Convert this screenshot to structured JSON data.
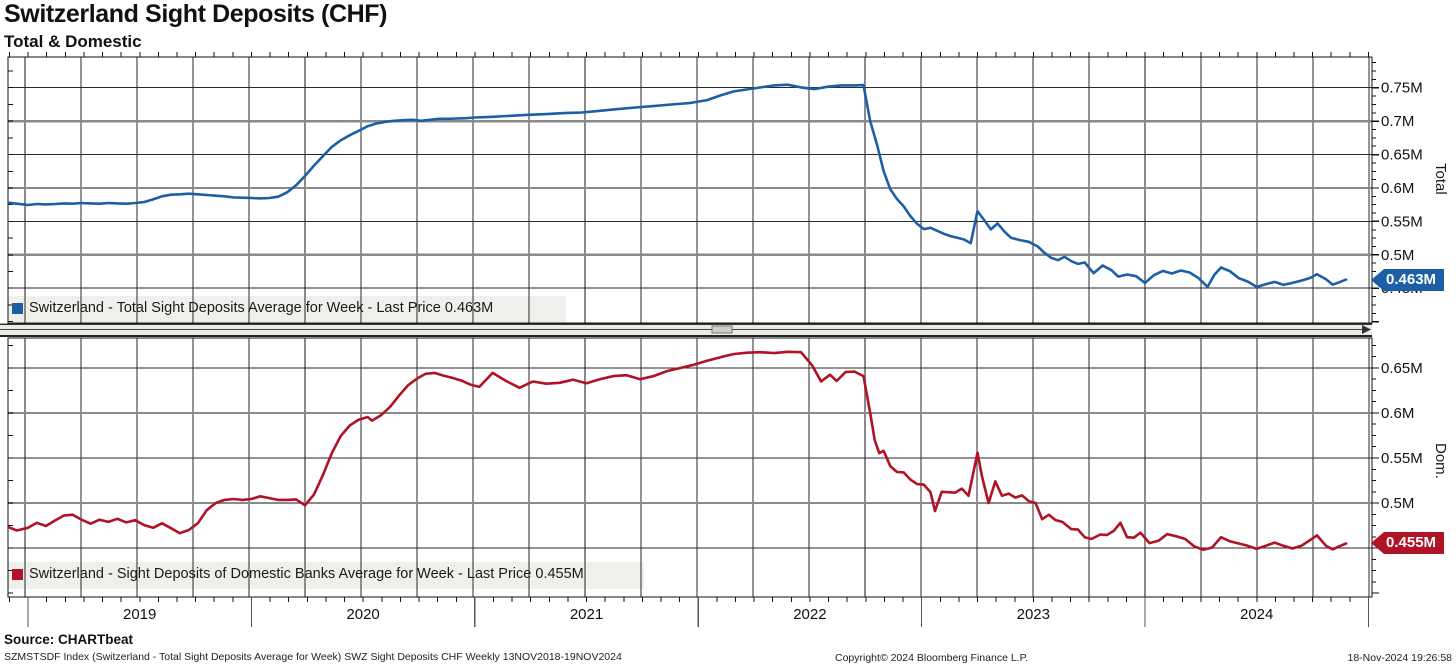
{
  "header": {
    "title": "Switzerland Sight Deposits (CHF)",
    "subtitle": "Total & Domestic"
  },
  "footer": {
    "source": "Source: CHARTbeat",
    "description": "SZMSTSDF Index (Switzerland - Total Sight Deposits Average for Week) SWZ Sight Deposits CHF  Weekly 13NOV2018-19NOV2024",
    "copyright": "Copyright© 2024 Bloomberg Finance L.P.",
    "timestamp": "18-Nov-2024 19:26:58"
  },
  "colors": {
    "total_line": "#1d5fa5",
    "domestic_line": "#b01226",
    "grid_thin": "#2a2a2a",
    "grid_thick": "#8a8a8a",
    "legend_strip": "#f0efeb",
    "axis_text": "#111111"
  },
  "x_axis": {
    "year_labels": [
      "2019",
      "2020",
      "2021",
      "2022",
      "2023",
      "2024"
    ],
    "range_note": "13NOV2018-19NOV2024"
  },
  "chart_data": [
    {
      "type": "line",
      "panel": "top",
      "legend": "Switzerland - Total Sight Deposits Average for Week - Last Price 0.463M",
      "series_name": "Switzerland - Total Sight Deposits Average for Week",
      "last_price": "0.463M",
      "last_price_value": 0.463,
      "color": "#1d5fa5",
      "right_axis_title": "Total",
      "ylim": [
        0.398,
        0.796
      ],
      "yticks": [
        0.75,
        0.7,
        0.65,
        0.6,
        0.55,
        0.5,
        0.45
      ],
      "ytick_labels": [
        "0.75M",
        "0.7M",
        "0.65M",
        "0.6M",
        "0.55M",
        "0.5M",
        "0.45M"
      ],
      "emphasized_gridlines": [
        0.7,
        0.6,
        0.5
      ],
      "x_unit": "decimal_year",
      "xlim": [
        2018.9,
        2025.02
      ],
      "points": [
        [
          2018.91,
          0.578
        ],
        [
          2018.95,
          0.5765
        ],
        [
          2019.0,
          0.5745
        ],
        [
          2019.04,
          0.576
        ],
        [
          2019.08,
          0.5755
        ],
        [
          2019.12,
          0.576
        ],
        [
          2019.16,
          0.577
        ],
        [
          2019.2,
          0.5765
        ],
        [
          2019.24,
          0.5775
        ],
        [
          2019.28,
          0.577
        ],
        [
          2019.32,
          0.5765
        ],
        [
          2019.36,
          0.5775
        ],
        [
          2019.4,
          0.577
        ],
        [
          2019.44,
          0.5765
        ],
        [
          2019.48,
          0.5775
        ],
        [
          2019.52,
          0.579
        ],
        [
          2019.56,
          0.583
        ],
        [
          2019.6,
          0.5875
        ],
        [
          2019.64,
          0.59
        ],
        [
          2019.68,
          0.5905
        ],
        [
          2019.72,
          0.5915
        ],
        [
          2019.76,
          0.5905
        ],
        [
          2019.8,
          0.5895
        ],
        [
          2019.84,
          0.5885
        ],
        [
          2019.88,
          0.5875
        ],
        [
          2019.92,
          0.586
        ],
        [
          2019.96,
          0.5855
        ],
        [
          2020.0,
          0.585
        ],
        [
          2020.04,
          0.5845
        ],
        [
          2020.08,
          0.585
        ],
        [
          2020.12,
          0.587
        ],
        [
          2020.16,
          0.5935
        ],
        [
          2020.2,
          0.604
        ],
        [
          2020.24,
          0.618
        ],
        [
          2020.28,
          0.6335
        ],
        [
          2020.32,
          0.6475
        ],
        [
          2020.36,
          0.6615
        ],
        [
          2020.4,
          0.6715
        ],
        [
          2020.44,
          0.679
        ],
        [
          2020.48,
          0.6855
        ],
        [
          2020.52,
          0.6925
        ],
        [
          2020.56,
          0.6965
        ],
        [
          2020.6,
          0.699
        ],
        [
          2020.64,
          0.7005
        ],
        [
          2020.68,
          0.7015
        ],
        [
          2020.72,
          0.702
        ],
        [
          2020.76,
          0.7005
        ],
        [
          2020.8,
          0.702
        ],
        [
          2020.84,
          0.7035
        ],
        [
          2020.88,
          0.7035
        ],
        [
          2020.92,
          0.704
        ],
        [
          2020.96,
          0.7045
        ],
        [
          2021.0,
          0.7055
        ],
        [
          2021.08,
          0.7065
        ],
        [
          2021.16,
          0.708
        ],
        [
          2021.24,
          0.7095
        ],
        [
          2021.32,
          0.7105
        ],
        [
          2021.4,
          0.712
        ],
        [
          2021.48,
          0.713
        ],
        [
          2021.56,
          0.7155
        ],
        [
          2021.64,
          0.718
        ],
        [
          2021.72,
          0.7205
        ],
        [
          2021.8,
          0.7225
        ],
        [
          2021.88,
          0.725
        ],
        [
          2021.96,
          0.727
        ],
        [
          2022.04,
          0.7315
        ],
        [
          2022.1,
          0.7385
        ],
        [
          2022.16,
          0.7445
        ],
        [
          2022.22,
          0.7475
        ],
        [
          2022.28,
          0.7505
        ],
        [
          2022.34,
          0.7535
        ],
        [
          2022.4,
          0.7545
        ],
        [
          2022.46,
          0.7505
        ],
        [
          2022.52,
          0.748
        ],
        [
          2022.58,
          0.7515
        ],
        [
          2022.64,
          0.7535
        ],
        [
          2022.7,
          0.7535
        ],
        [
          2022.74,
          0.754
        ],
        [
          2022.77,
          0.7
        ],
        [
          2022.8,
          0.6655
        ],
        [
          2022.83,
          0.6255
        ],
        [
          2022.86,
          0.598
        ],
        [
          2022.89,
          0.5835
        ],
        [
          2022.92,
          0.5725
        ],
        [
          2022.95,
          0.558
        ],
        [
          2022.98,
          0.5465
        ],
        [
          2023.01,
          0.5385
        ],
        [
          2023.04,
          0.5405
        ],
        [
          2023.07,
          0.536
        ],
        [
          2023.1,
          0.5315
        ],
        [
          2023.13,
          0.528
        ],
        [
          2023.16,
          0.5255
        ],
        [
          2023.19,
          0.523
        ],
        [
          2023.22,
          0.5175
        ],
        [
          2023.25,
          0.5655
        ],
        [
          2023.28,
          0.552
        ],
        [
          2023.31,
          0.538
        ],
        [
          2023.34,
          0.547
        ],
        [
          2023.37,
          0.535
        ],
        [
          2023.4,
          0.5255
        ],
        [
          2023.44,
          0.522
        ],
        [
          2023.48,
          0.5195
        ],
        [
          2023.52,
          0.5125
        ],
        [
          2023.55,
          0.503
        ],
        [
          2023.58,
          0.4955
        ],
        [
          2023.61,
          0.492
        ],
        [
          2023.64,
          0.497
        ],
        [
          2023.67,
          0.4905
        ],
        [
          2023.7,
          0.4865
        ],
        [
          2023.73,
          0.4885
        ],
        [
          2023.77,
          0.4725
        ],
        [
          2023.81,
          0.484
        ],
        [
          2023.85,
          0.477
        ],
        [
          2023.88,
          0.4675
        ],
        [
          2023.92,
          0.4705
        ],
        [
          2023.96,
          0.468
        ],
        [
          2024.0,
          0.458
        ],
        [
          2024.04,
          0.4695
        ],
        [
          2024.08,
          0.476
        ],
        [
          2024.12,
          0.472
        ],
        [
          2024.16,
          0.4765
        ],
        [
          2024.2,
          0.4735
        ],
        [
          2024.24,
          0.465
        ],
        [
          2024.28,
          0.452
        ],
        [
          2024.31,
          0.47
        ],
        [
          2024.34,
          0.481
        ],
        [
          2024.38,
          0.4755
        ],
        [
          2024.42,
          0.465
        ],
        [
          2024.46,
          0.46
        ],
        [
          2024.5,
          0.452
        ],
        [
          2024.54,
          0.456
        ],
        [
          2024.58,
          0.4595
        ],
        [
          2024.62,
          0.455
        ],
        [
          2024.66,
          0.458
        ],
        [
          2024.7,
          0.4615
        ],
        [
          2024.74,
          0.4655
        ],
        [
          2024.77,
          0.471
        ],
        [
          2024.81,
          0.4635
        ],
        [
          2024.84,
          0.4555
        ],
        [
          2024.87,
          0.459
        ],
        [
          2024.9,
          0.463
        ]
      ]
    },
    {
      "type": "line",
      "panel": "bottom",
      "legend": "Switzerland - Sight Deposits of Domestic Banks Average for Week - Last Price 0.455M",
      "series_name": "Switzerland - Sight Deposits of Domestic Banks Average for Week",
      "last_price": "0.455M",
      "last_price_value": 0.455,
      "color": "#b01226",
      "right_axis_title": "Dom.",
      "ylim": [
        0.3956,
        0.6833
      ],
      "yticks": [
        0.65,
        0.6,
        0.55,
        0.5,
        0.45
      ],
      "ytick_labels": [
        "0.65M",
        "0.6M",
        "0.55M",
        "0.5M",
        "0.45M"
      ],
      "emphasized_gridlines": [
        0.6,
        0.5
      ],
      "x_unit": "decimal_year",
      "xlim": [
        2018.9,
        2025.02
      ],
      "points": [
        [
          2018.91,
          0.4735
        ],
        [
          2018.95,
          0.4695
        ],
        [
          2019.0,
          0.4725
        ],
        [
          2019.04,
          0.478
        ],
        [
          2019.08,
          0.4745
        ],
        [
          2019.12,
          0.4805
        ],
        [
          2019.16,
          0.486
        ],
        [
          2019.2,
          0.487
        ],
        [
          2019.24,
          0.4815
        ],
        [
          2019.28,
          0.477
        ],
        [
          2019.32,
          0.4815
        ],
        [
          2019.36,
          0.479
        ],
        [
          2019.4,
          0.4825
        ],
        [
          2019.44,
          0.4785
        ],
        [
          2019.48,
          0.481
        ],
        [
          2019.52,
          0.4755
        ],
        [
          2019.56,
          0.4725
        ],
        [
          2019.6,
          0.4775
        ],
        [
          2019.64,
          0.472
        ],
        [
          2019.68,
          0.4665
        ],
        [
          2019.72,
          0.47
        ],
        [
          2019.76,
          0.4775
        ],
        [
          2019.8,
          0.492
        ],
        [
          2019.84,
          0.5
        ],
        [
          2019.88,
          0.5035
        ],
        [
          2019.92,
          0.5045
        ],
        [
          2019.96,
          0.5035
        ],
        [
          2020.0,
          0.5045
        ],
        [
          2020.04,
          0.5075
        ],
        [
          2020.08,
          0.5055
        ],
        [
          2020.12,
          0.5035
        ],
        [
          2020.16,
          0.5035
        ],
        [
          2020.2,
          0.504
        ],
        [
          2020.24,
          0.4975
        ],
        [
          2020.28,
          0.5095
        ],
        [
          2020.32,
          0.531
        ],
        [
          2020.36,
          0.5555
        ],
        [
          2020.4,
          0.5745
        ],
        [
          2020.44,
          0.586
        ],
        [
          2020.48,
          0.5925
        ],
        [
          2020.52,
          0.5955
        ],
        [
          2020.54,
          0.5915
        ],
        [
          2020.58,
          0.5975
        ],
        [
          2020.62,
          0.6065
        ],
        [
          2020.66,
          0.619
        ],
        [
          2020.7,
          0.6305
        ],
        [
          2020.74,
          0.638
        ],
        [
          2020.78,
          0.6435
        ],
        [
          2020.82,
          0.6445
        ],
        [
          2020.86,
          0.6415
        ],
        [
          2020.9,
          0.639
        ],
        [
          2020.94,
          0.636
        ],
        [
          2020.98,
          0.6315
        ],
        [
          2021.02,
          0.629
        ],
        [
          2021.08,
          0.6445
        ],
        [
          2021.14,
          0.6355
        ],
        [
          2021.2,
          0.628
        ],
        [
          2021.26,
          0.635
        ],
        [
          2021.32,
          0.6325
        ],
        [
          2021.38,
          0.6335
        ],
        [
          2021.44,
          0.637
        ],
        [
          2021.5,
          0.633
        ],
        [
          2021.56,
          0.6375
        ],
        [
          2021.62,
          0.641
        ],
        [
          2021.68,
          0.642
        ],
        [
          2021.74,
          0.6375
        ],
        [
          2021.8,
          0.641
        ],
        [
          2021.86,
          0.6465
        ],
        [
          2021.92,
          0.65
        ],
        [
          2021.98,
          0.6535
        ],
        [
          2022.04,
          0.658
        ],
        [
          2022.1,
          0.662
        ],
        [
          2022.16,
          0.6655
        ],
        [
          2022.22,
          0.667
        ],
        [
          2022.28,
          0.6675
        ],
        [
          2022.34,
          0.6665
        ],
        [
          2022.4,
          0.668
        ],
        [
          2022.46,
          0.6675
        ],
        [
          2022.51,
          0.653
        ],
        [
          2022.55,
          0.635
        ],
        [
          2022.59,
          0.6425
        ],
        [
          2022.62,
          0.6355
        ],
        [
          2022.66,
          0.6455
        ],
        [
          2022.7,
          0.646
        ],
        [
          2022.74,
          0.641
        ],
        [
          2022.77,
          0.6
        ],
        [
          2022.79,
          0.57
        ],
        [
          2022.81,
          0.5555
        ],
        [
          2022.83,
          0.558
        ],
        [
          2022.86,
          0.541
        ],
        [
          2022.89,
          0.5345
        ],
        [
          2022.92,
          0.534
        ],
        [
          2022.95,
          0.526
        ],
        [
          2022.98,
          0.521
        ],
        [
          2023.01,
          0.5205
        ],
        [
          2023.04,
          0.512
        ],
        [
          2023.06,
          0.491
        ],
        [
          2023.09,
          0.5125
        ],
        [
          2023.12,
          0.512
        ],
        [
          2023.15,
          0.5115
        ],
        [
          2023.18,
          0.516
        ],
        [
          2023.21,
          0.508
        ],
        [
          2023.25,
          0.556
        ],
        [
          2023.27,
          0.53
        ],
        [
          2023.3,
          0.5
        ],
        [
          2023.33,
          0.524
        ],
        [
          2023.36,
          0.508
        ],
        [
          2023.39,
          0.5105
        ],
        [
          2023.42,
          0.506
        ],
        [
          2023.45,
          0.5085
        ],
        [
          2023.48,
          0.502
        ],
        [
          2023.51,
          0.5
        ],
        [
          2023.54,
          0.482
        ],
        [
          2023.57,
          0.487
        ],
        [
          2023.6,
          0.481
        ],
        [
          2023.63,
          0.479
        ],
        [
          2023.67,
          0.471
        ],
        [
          2023.7,
          0.4705
        ],
        [
          2023.73,
          0.462
        ],
        [
          2023.76,
          0.46
        ],
        [
          2023.8,
          0.465
        ],
        [
          2023.83,
          0.4645
        ],
        [
          2023.86,
          0.469
        ],
        [
          2023.89,
          0.478
        ],
        [
          2023.92,
          0.462
        ],
        [
          2023.95,
          0.4615
        ],
        [
          2023.98,
          0.467
        ],
        [
          2024.02,
          0.4555
        ],
        [
          2024.06,
          0.458
        ],
        [
          2024.1,
          0.4655
        ],
        [
          2024.14,
          0.463
        ],
        [
          2024.18,
          0.46
        ],
        [
          2024.22,
          0.452
        ],
        [
          2024.26,
          0.448
        ],
        [
          2024.3,
          0.4505
        ],
        [
          2024.34,
          0.462
        ],
        [
          2024.38,
          0.4575
        ],
        [
          2024.42,
          0.455
        ],
        [
          2024.46,
          0.4525
        ],
        [
          2024.5,
          0.449
        ],
        [
          2024.54,
          0.4525
        ],
        [
          2024.58,
          0.456
        ],
        [
          2024.62,
          0.4525
        ],
        [
          2024.66,
          0.4495
        ],
        [
          2024.7,
          0.4525
        ],
        [
          2024.74,
          0.459
        ],
        [
          2024.77,
          0.464
        ],
        [
          2024.81,
          0.4525
        ],
        [
          2024.84,
          0.4485
        ],
        [
          2024.87,
          0.452
        ],
        [
          2024.9,
          0.455
        ]
      ]
    }
  ]
}
